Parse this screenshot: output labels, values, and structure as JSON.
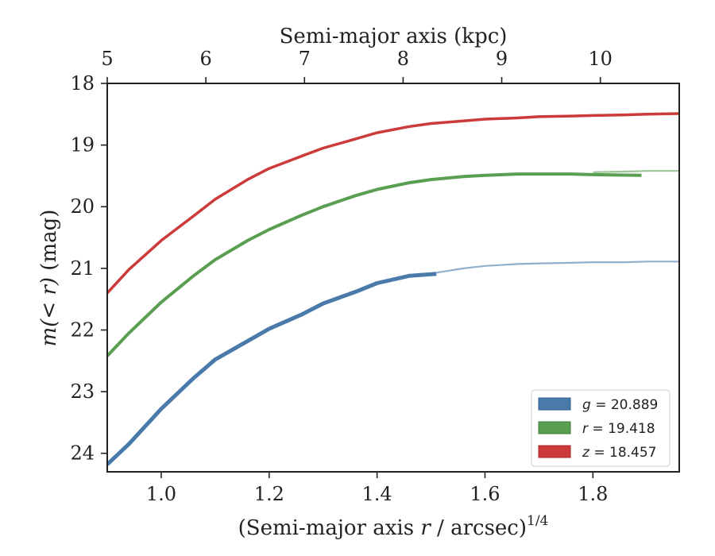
{
  "chart_data": {
    "type": "line",
    "xlabel_bottom_prefix": "(Semi-major axis ",
    "xlabel_bottom_var": "r",
    "xlabel_bottom_suffix": " / arcsec)",
    "xlabel_bottom_exp": "1/4",
    "xlabel_top": "Semi-major axis (kpc)",
    "ylabel_prefix": "m(< r)",
    "ylabel_suffix": " (mag)",
    "xlim": [
      0.9,
      1.96
    ],
    "ylim": [
      24.3,
      18.0
    ],
    "y_inverted": true,
    "top_xlim": [
      5.0,
      10.8
    ],
    "xticks": [
      "1.0",
      "1.2",
      "1.4",
      "1.6",
      "1.8"
    ],
    "yticks": [
      "18",
      "19",
      "20",
      "21",
      "22",
      "23",
      "24"
    ],
    "top_xticks": [
      "5",
      "6",
      "7",
      "8",
      "9",
      "10"
    ],
    "grid": false,
    "legend_position": "lower-right",
    "series": [
      {
        "name": "g = 20.889",
        "legend_var": "g",
        "legend_value": "20.889",
        "color": "#4a7aaa",
        "x": [
          0.9,
          0.94,
          1.0,
          1.06,
          1.1,
          1.16,
          1.2,
          1.26,
          1.3,
          1.36,
          1.4,
          1.46,
          1.51
        ],
        "y": [
          24.18,
          23.85,
          23.28,
          22.78,
          22.48,
          22.18,
          21.98,
          21.75,
          21.57,
          21.38,
          21.24,
          21.12,
          21.09
        ],
        "extrapolation": {
          "x": [
            1.51,
            1.56,
            1.6,
            1.66,
            1.7,
            1.76,
            1.8,
            1.86,
            1.9,
            1.96
          ],
          "y": [
            21.07,
            21.0,
            20.96,
            20.93,
            20.92,
            20.91,
            20.9,
            20.9,
            20.89,
            20.89
          ]
        }
      },
      {
        "name": "r = 19.418",
        "legend_var": "r",
        "legend_value": "19.418",
        "color": "#5a9e52",
        "x": [
          0.9,
          0.94,
          1.0,
          1.06,
          1.1,
          1.16,
          1.2,
          1.26,
          1.3,
          1.36,
          1.4,
          1.46,
          1.5,
          1.56,
          1.6,
          1.66,
          1.7,
          1.76,
          1.8,
          1.89
        ],
        "y": [
          22.42,
          22.05,
          21.55,
          21.12,
          20.86,
          20.55,
          20.37,
          20.14,
          20.0,
          19.82,
          19.72,
          19.61,
          19.56,
          19.51,
          19.49,
          19.47,
          19.47,
          19.47,
          19.48,
          19.49
        ],
        "extrapolation": {
          "x": [
            1.8,
            1.86,
            1.9,
            1.96
          ],
          "y": [
            19.44,
            19.43,
            19.42,
            19.42
          ]
        }
      },
      {
        "name": "z = 18.457",
        "legend_var": "z",
        "legend_value": "18.457",
        "color": "#cc3a3a",
        "x": [
          0.9,
          0.94,
          1.0,
          1.06,
          1.1,
          1.16,
          1.2,
          1.26,
          1.3,
          1.36,
          1.4,
          1.46,
          1.5,
          1.56,
          1.6,
          1.66,
          1.7,
          1.76,
          1.8,
          1.86,
          1.9,
          1.96
        ],
        "y": [
          21.4,
          21.02,
          20.55,
          20.15,
          19.88,
          19.56,
          19.38,
          19.18,
          19.05,
          18.9,
          18.8,
          18.7,
          18.65,
          18.61,
          18.58,
          18.56,
          18.54,
          18.53,
          18.52,
          18.51,
          18.5,
          18.49
        ]
      }
    ]
  }
}
